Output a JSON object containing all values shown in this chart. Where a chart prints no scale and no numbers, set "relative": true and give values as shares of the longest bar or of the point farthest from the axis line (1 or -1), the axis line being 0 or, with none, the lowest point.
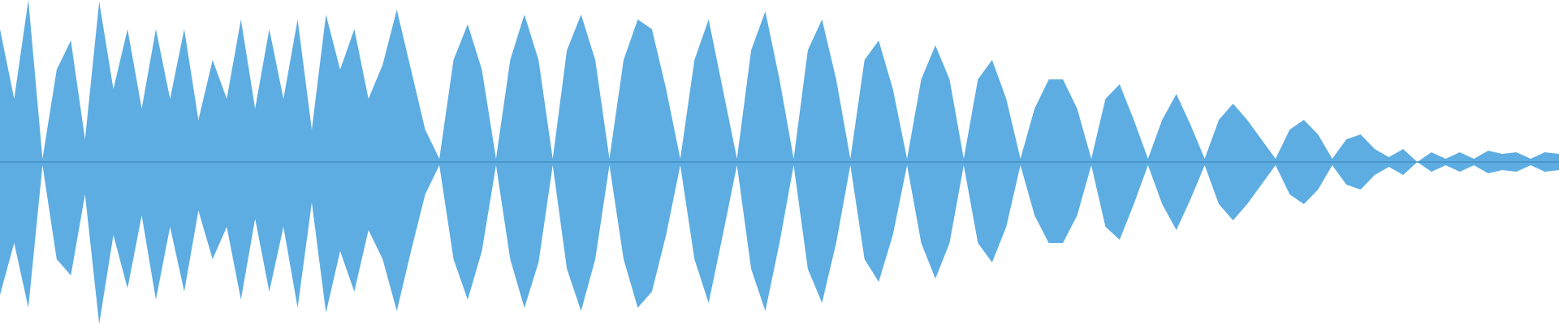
{
  "chart_data": {
    "type": "area",
    "relative": true,
    "legend": false,
    "grid": false,
    "ref_lines": [
      {
        "axis": "y",
        "value": 0,
        "color": "#3a7fb5"
      }
    ],
    "categories": [
      null,
      null,
      null,
      null,
      null,
      null,
      null,
      null,
      null,
      null,
      null,
      null,
      null,
      null,
      null,
      null,
      null,
      null,
      null,
      null,
      null,
      null,
      null,
      null,
      null,
      null,
      null,
      null,
      null,
      null,
      null,
      null,
      null,
      null,
      null,
      null,
      null,
      null,
      null,
      null,
      null,
      null,
      null,
      null,
      null,
      null,
      null,
      null,
      null,
      null,
      null,
      null,
      null,
      null,
      null,
      null,
      null,
      null,
      null,
      null,
      null,
      null,
      null,
      null,
      null,
      null,
      null,
      null,
      null,
      null,
      null,
      null,
      null,
      null,
      null,
      null,
      null,
      null,
      null,
      null,
      null,
      null,
      null,
      null,
      null,
      null,
      null,
      null,
      null,
      null,
      null,
      null,
      null,
      null,
      null,
      null,
      null,
      null,
      null,
      null,
      null,
      null,
      null,
      null,
      null,
      null,
      null,
      null,
      null,
      null,
      null
    ],
    "series": [
      {
        "color": "#5dade2",
        "values": [
          0.82,
          0.39,
          1.0,
          0.02,
          0.57,
          0.75,
          0.14,
          0.99,
          0.45,
          0.82,
          0.33,
          0.82,
          0.39,
          0.82,
          0.26,
          0.63,
          0.39,
          0.88,
          0.33,
          0.82,
          0.39,
          0.88,
          0.2,
          0.91,
          0.57,
          0.82,
          0.39,
          0.6,
          0.94,
          0.57,
          0.2,
          0.02,
          0.63,
          0.85,
          0.57,
          0.02,
          0.63,
          0.91,
          0.63,
          0.02,
          0.69,
          0.91,
          0.63,
          0.02,
          0.63,
          0.88,
          0.82,
          0.45,
          0.02,
          0.63,
          0.88,
          0.45,
          0.02,
          0.69,
          0.93,
          0.51,
          0.02,
          0.69,
          0.88,
          0.51,
          0.02,
          0.63,
          0.75,
          0.45,
          0.02,
          0.51,
          0.72,
          0.51,
          0.02,
          0.51,
          0.63,
          0.39,
          0.02,
          0.33,
          0.51,
          0.51,
          0.33,
          0.02,
          0.39,
          0.48,
          0.26,
          0.02,
          0.26,
          0.42,
          0.23,
          0.02,
          0.26,
          0.36,
          0.26,
          0.14,
          0.02,
          0.2,
          0.26,
          0.17,
          0.02,
          0.14,
          0.17,
          0.08,
          0.03,
          0.08,
          0,
          0.06,
          0.02,
          0.06,
          0.02,
          0.07,
          0.05,
          0.06,
          0.02,
          0.06,
          0.05
        ]
      },
      {
        "color": "#5dade2",
        "values": [
          -0.82,
          -0.5,
          -0.9,
          -0.02,
          -0.6,
          -0.7,
          -0.2,
          -1.0,
          -0.45,
          -0.78,
          -0.33,
          -0.85,
          -0.4,
          -0.8,
          -0.3,
          -0.6,
          -0.4,
          -0.85,
          -0.35,
          -0.8,
          -0.4,
          -0.9,
          -0.25,
          -0.93,
          -0.55,
          -0.8,
          -0.42,
          -0.6,
          -0.92,
          -0.55,
          -0.2,
          -0.02,
          -0.6,
          -0.85,
          -0.55,
          -0.02,
          -0.6,
          -0.9,
          -0.62,
          -0.02,
          -0.66,
          -0.92,
          -0.6,
          -0.02,
          -0.6,
          -0.9,
          -0.8,
          -0.45,
          -0.02,
          -0.6,
          -0.87,
          -0.45,
          -0.02,
          -0.66,
          -0.92,
          -0.5,
          -0.02,
          -0.66,
          -0.87,
          -0.5,
          -0.02,
          -0.6,
          -0.74,
          -0.45,
          -0.02,
          -0.5,
          -0.72,
          -0.5,
          -0.02,
          -0.5,
          -0.62,
          -0.4,
          -0.02,
          -0.33,
          -0.5,
          -0.5,
          -0.33,
          -0.02,
          -0.4,
          -0.48,
          -0.26,
          -0.02,
          -0.26,
          -0.42,
          -0.23,
          -0.02,
          -0.26,
          -0.36,
          -0.26,
          -0.14,
          -0.02,
          -0.2,
          -0.26,
          -0.17,
          -0.02,
          -0.14,
          -0.17,
          -0.08,
          -0.03,
          -0.08,
          0,
          -0.06,
          -0.02,
          -0.06,
          -0.02,
          -0.07,
          -0.05,
          -0.06,
          -0.02,
          -0.06,
          -0.05
        ]
      }
    ]
  }
}
